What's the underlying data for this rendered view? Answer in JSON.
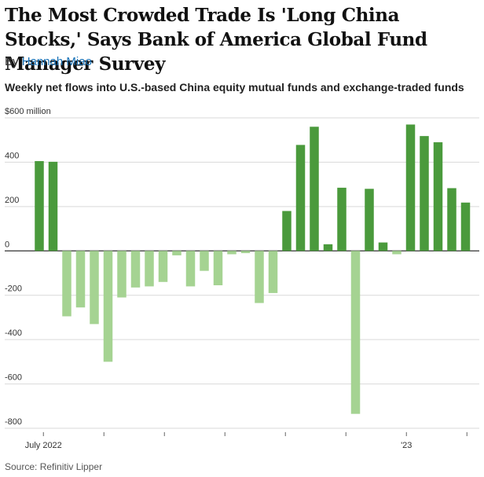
{
  "headline": "The Most Crowded Trade Is 'Long China Stocks,' Says Bank of America Global Fund Manager Survey",
  "byline": {
    "prefix": "By",
    "author": "Hannah Miao"
  },
  "subtitle": "Weekly net flows into U.S.-based China equity mutual funds and exchange-traded funds",
  "source": "Source: Refinitiv Lipper",
  "colors": {
    "positive": "#4a9a3c",
    "negative": "#a5d392",
    "grid": "#d9d9d9",
    "zero": "#333333"
  },
  "chart_data": {
    "type": "bar",
    "title": "",
    "xlabel": "",
    "ylabel": "",
    "ylim": [
      -800,
      600
    ],
    "y_ticks": [
      {
        "value": 600,
        "label": "$600 million"
      },
      {
        "value": 400,
        "label": "400"
      },
      {
        "value": 200,
        "label": "200"
      },
      {
        "value": 0,
        "label": "0"
      },
      {
        "value": -200,
        "label": "-200"
      },
      {
        "value": -400,
        "label": "-400"
      },
      {
        "value": -600,
        "label": "-600"
      },
      {
        "value": -800,
        "label": "-800"
      }
    ],
    "x_labels": [
      {
        "index": 0.3,
        "label": "July 2022"
      },
      {
        "index": 26.7,
        "label": "'23"
      }
    ],
    "x_tick_marks": [
      0.3,
      4.7,
      9.1,
      13.5,
      17.9,
      22.3,
      26.7,
      31.1
    ],
    "grid": true,
    "legend": "none",
    "values": [
      405,
      402,
      -295,
      -255,
      -330,
      -500,
      -210,
      -165,
      -160,
      -140,
      -20,
      -160,
      -90,
      -155,
      -15,
      -10,
      -235,
      -190,
      180,
      478,
      560,
      30,
      285,
      -735,
      280,
      38,
      -15,
      570,
      518,
      490,
      283,
      218
    ]
  }
}
